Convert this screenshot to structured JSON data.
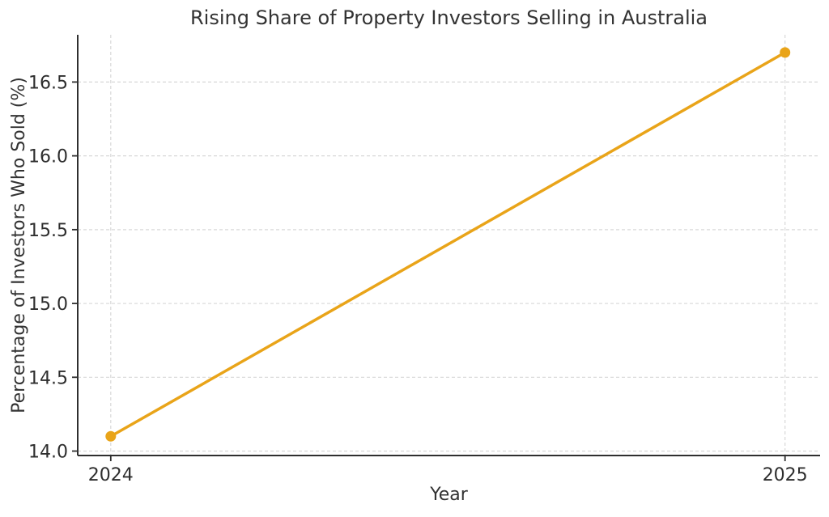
{
  "chart_data": {
    "type": "line",
    "title": "Rising Share of Property Investors Selling in Australia",
    "xlabel": "Year",
    "ylabel": "Percentage of Investors Who Sold (%)",
    "x": [
      2024,
      2025
    ],
    "series": [
      {
        "name": "Percentage of Investors Who Sold",
        "values": [
          14.1,
          16.7
        ],
        "color": "#E9A419",
        "marker": "circle",
        "line_width": 3.5,
        "marker_radius": 6.5
      }
    ],
    "xlim": [
      2023.951,
      2025.052
    ],
    "ylim": [
      13.97,
      16.82
    ],
    "xticks": {
      "values": [
        2024,
        2025
      ],
      "labels": [
        "2024",
        "2025"
      ]
    },
    "yticks": {
      "values": [
        14.0,
        14.5,
        15.0,
        15.5,
        16.0,
        16.5
      ],
      "labels": [
        "14.0",
        "14.5",
        "15.0",
        "15.5",
        "16.0",
        "16.5"
      ]
    },
    "grid": true,
    "grid_style": "dashed",
    "legend_position": "none",
    "colors": {
      "line": "#E9A419",
      "grid": "#D8D8D8",
      "axis": "#2F2F2F",
      "text": "#333333",
      "background": "#FFFFFF"
    }
  }
}
